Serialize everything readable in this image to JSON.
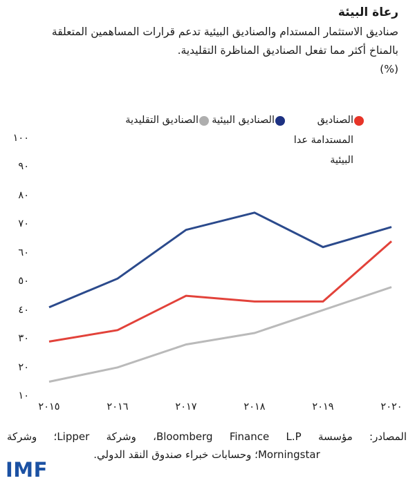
{
  "header": {
    "title": "رعاة البيئة",
    "subtitle_line1": "صناديق الاستثمار المستدام والصناديق البيئية تدعم قرارات المساهمين المتعلقة",
    "subtitle_line2": "بالمناخ أكثر مما تفعل الصناديق المناظرة التقليدية.",
    "unit_label": "(%)"
  },
  "legend": [
    {
      "label": "الصناديق المستدامة عدا البيئية",
      "color": "#e73428",
      "key": "sustainable_ex_environmental"
    },
    {
      "label": "الصناديق البيئية",
      "color": "#1d3182",
      "key": "environmental"
    },
    {
      "label": "الصناديق التقليدية",
      "color": "#aeaeae",
      "key": "traditional"
    }
  ],
  "chart_data": {
    "type": "line",
    "title": "رعاة البيئة",
    "ylabel": "(%)",
    "categories": [
      "٢٠١٥",
      "٢٠١٦",
      "٢٠١٧",
      "٢٠١٨",
      "٢٠١٩",
      "٢٠٢٠"
    ],
    "categories_western": [
      2015,
      2016,
      2017,
      2018,
      2019,
      2020
    ],
    "series": [
      {
        "name": "الصناديق المستدامة عدا البيئية",
        "key": "sustainable_ex_environmental",
        "color": "#e2423a",
        "values": [
          29,
          33,
          45,
          43,
          43,
          64
        ]
      },
      {
        "name": "الصناديق البيئية",
        "key": "environmental",
        "color": "#2b4a8c",
        "values": [
          41,
          51,
          68,
          74,
          62,
          69
        ]
      },
      {
        "name": "الصناديق التقليدية",
        "key": "traditional",
        "color": "#bababa",
        "values": [
          15,
          20,
          28,
          32,
          40,
          48
        ]
      }
    ],
    "yticks": [
      {
        "label": "١٠٠",
        "value": 100
      },
      {
        "label": "٩٠",
        "value": 90
      },
      {
        "label": "٨٠",
        "value": 80
      },
      {
        "label": "٧٠",
        "value": 70
      },
      {
        "label": "٦٠",
        "value": 60
      },
      {
        "label": "٥٠",
        "value": 50
      },
      {
        "label": "٤٠",
        "value": 40
      },
      {
        "label": "٣٠",
        "value": 30
      },
      {
        "label": "٢٠",
        "value": 20
      },
      {
        "label": "١٠",
        "value": 10
      }
    ],
    "ylim": [
      10,
      100
    ],
    "grid": false,
    "legend_position": "top"
  },
  "source": {
    "line1": "المصادر: مؤسسة Bloomberg Finance L.P، وشركة Lipper؛ وشركة",
    "line2": "Morningstar؛ وحسابات خبراء صندوق النقد الدولي."
  },
  "footer": {
    "logo_text": "IMF",
    "logo_color": "#1b51a3"
  }
}
